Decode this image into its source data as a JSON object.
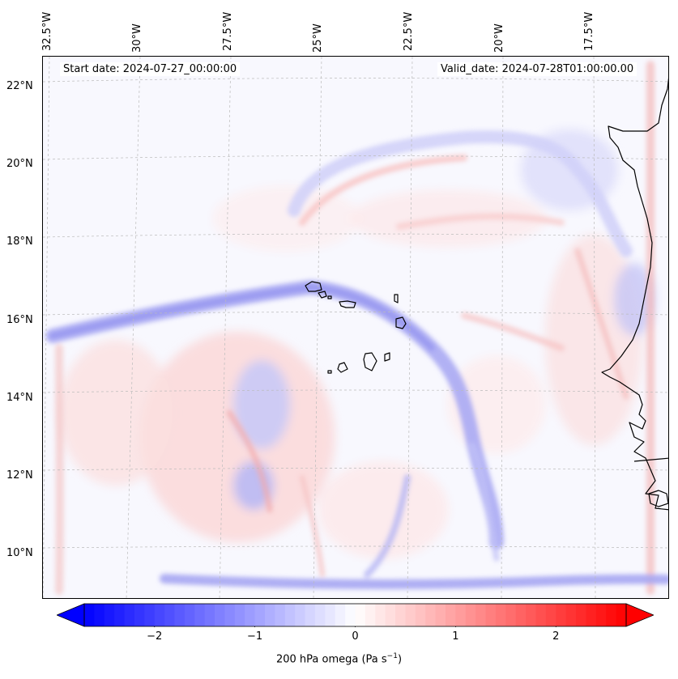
{
  "map": {
    "start_date": "Start date: 2024-07-27_00:00:00",
    "valid_date": "Valid_date: 2024-07-28T01:00:00.00",
    "lon_labels": [
      "32.5°W",
      "30°W",
      "27.5°W",
      "25°W",
      "22.5°W",
      "20°W",
      "17.5°W"
    ],
    "lat_labels": [
      "22°N",
      "20°N",
      "18°N",
      "16°N",
      "14°N",
      "12°N",
      "10°N"
    ],
    "colors": {
      "negative": "#0000ff",
      "neutral": "#ffffff",
      "positive": "#ff0000",
      "coast": "#000000",
      "grid": "#bbbbbb"
    }
  },
  "colorbar": {
    "min": -2.7,
    "max": 2.7,
    "ticks": [
      -2,
      -1,
      0,
      1,
      2
    ],
    "tick_labels": [
      "−2",
      "−1",
      "0",
      "1",
      "2"
    ],
    "title": "200 hPa omega (Pa s",
    "title_sup": "−1",
    "title_end": ")"
  }
}
